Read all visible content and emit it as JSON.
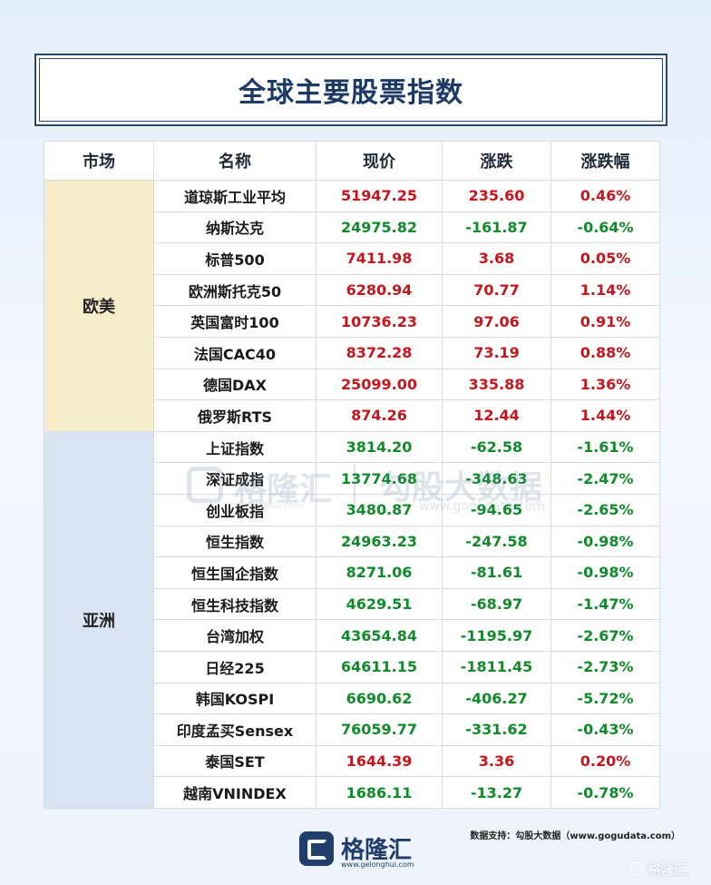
{
  "title": "全球主要股票指数",
  "colors": {
    "up": "#c4161c",
    "down": "#118a2b",
    "europe_bg": "#f7edc8",
    "asia_bg": "#d9e3f2",
    "title": "#1c3a63"
  },
  "table": {
    "headers": [
      "市场",
      "名称",
      "现价",
      "涨跌",
      "涨跌幅"
    ],
    "groups": [
      {
        "market": "欧美",
        "rows": [
          {
            "name": "道琼斯工业平均",
            "price": "51947.25",
            "change": "235.60",
            "pct": "0.46%"
          },
          {
            "name": "纳斯达克",
            "price": "24975.82",
            "change": "-161.87",
            "pct": "-0.64%"
          },
          {
            "name": "标普500",
            "price": "7411.98",
            "change": "3.68",
            "pct": "0.05%"
          },
          {
            "name": "欧洲斯托克50",
            "price": "6280.94",
            "change": "70.77",
            "pct": "1.14%"
          },
          {
            "name": "英国富时100",
            "price": "10736.23",
            "change": "97.06",
            "pct": "0.91%"
          },
          {
            "name": "法国CAC40",
            "price": "8372.28",
            "change": "73.19",
            "pct": "0.88%"
          },
          {
            "name": "德国DAX",
            "price": "25099.00",
            "change": "335.88",
            "pct": "1.36%"
          },
          {
            "name": "俄罗斯RTS",
            "price": "874.26",
            "change": "12.44",
            "pct": "1.44%"
          }
        ]
      },
      {
        "market": "亚洲",
        "rows": [
          {
            "name": "上证指数",
            "price": "3814.20",
            "change": "-62.58",
            "pct": "-1.61%"
          },
          {
            "name": "深证成指",
            "price": "13774.68",
            "change": "-348.63",
            "pct": "-2.47%"
          },
          {
            "name": "创业板指",
            "price": "3480.87",
            "change": "-94.65",
            "pct": "-2.65%"
          },
          {
            "name": "恒生指数",
            "price": "24963.23",
            "change": "-247.58",
            "pct": "-0.98%"
          },
          {
            "name": "恒生国企指数",
            "price": "8271.06",
            "change": "-81.61",
            "pct": "-0.98%"
          },
          {
            "name": "恒生科技指数",
            "price": "4629.51",
            "change": "-68.97",
            "pct": "-1.47%"
          },
          {
            "name": "台湾加权",
            "price": "43654.84",
            "change": "-1195.97",
            "pct": "-2.67%"
          },
          {
            "name": "日经225",
            "price": "64611.15",
            "change": "-1811.45",
            "pct": "-2.73%"
          },
          {
            "name": "韩国KOSPI",
            "price": "6690.62",
            "change": "-406.27",
            "pct": "-5.72%"
          },
          {
            "name": "印度孟买Sensex",
            "price": "76059.77",
            "change": "-331.62",
            "pct": "-0.43%"
          },
          {
            "name": "泰国SET",
            "price": "1644.39",
            "change": "3.36",
            "pct": "0.20%"
          },
          {
            "name": "越南VNINDEX",
            "price": "1686.11",
            "change": "-13.27",
            "pct": "-0.78%"
          }
        ]
      }
    ]
  },
  "watermark": {
    "brand": "格隆汇",
    "brand_url": "gelonghui.com",
    "data_brand": "勾股大数据",
    "data_url": "www.gogudata.com"
  },
  "footer": {
    "logo_text": "格隆汇",
    "logo_url": "www.gelonghui.com",
    "source": "数据支持：勾股大数据（www.gogudata.com）",
    "corner_brand": "格隆汇"
  }
}
